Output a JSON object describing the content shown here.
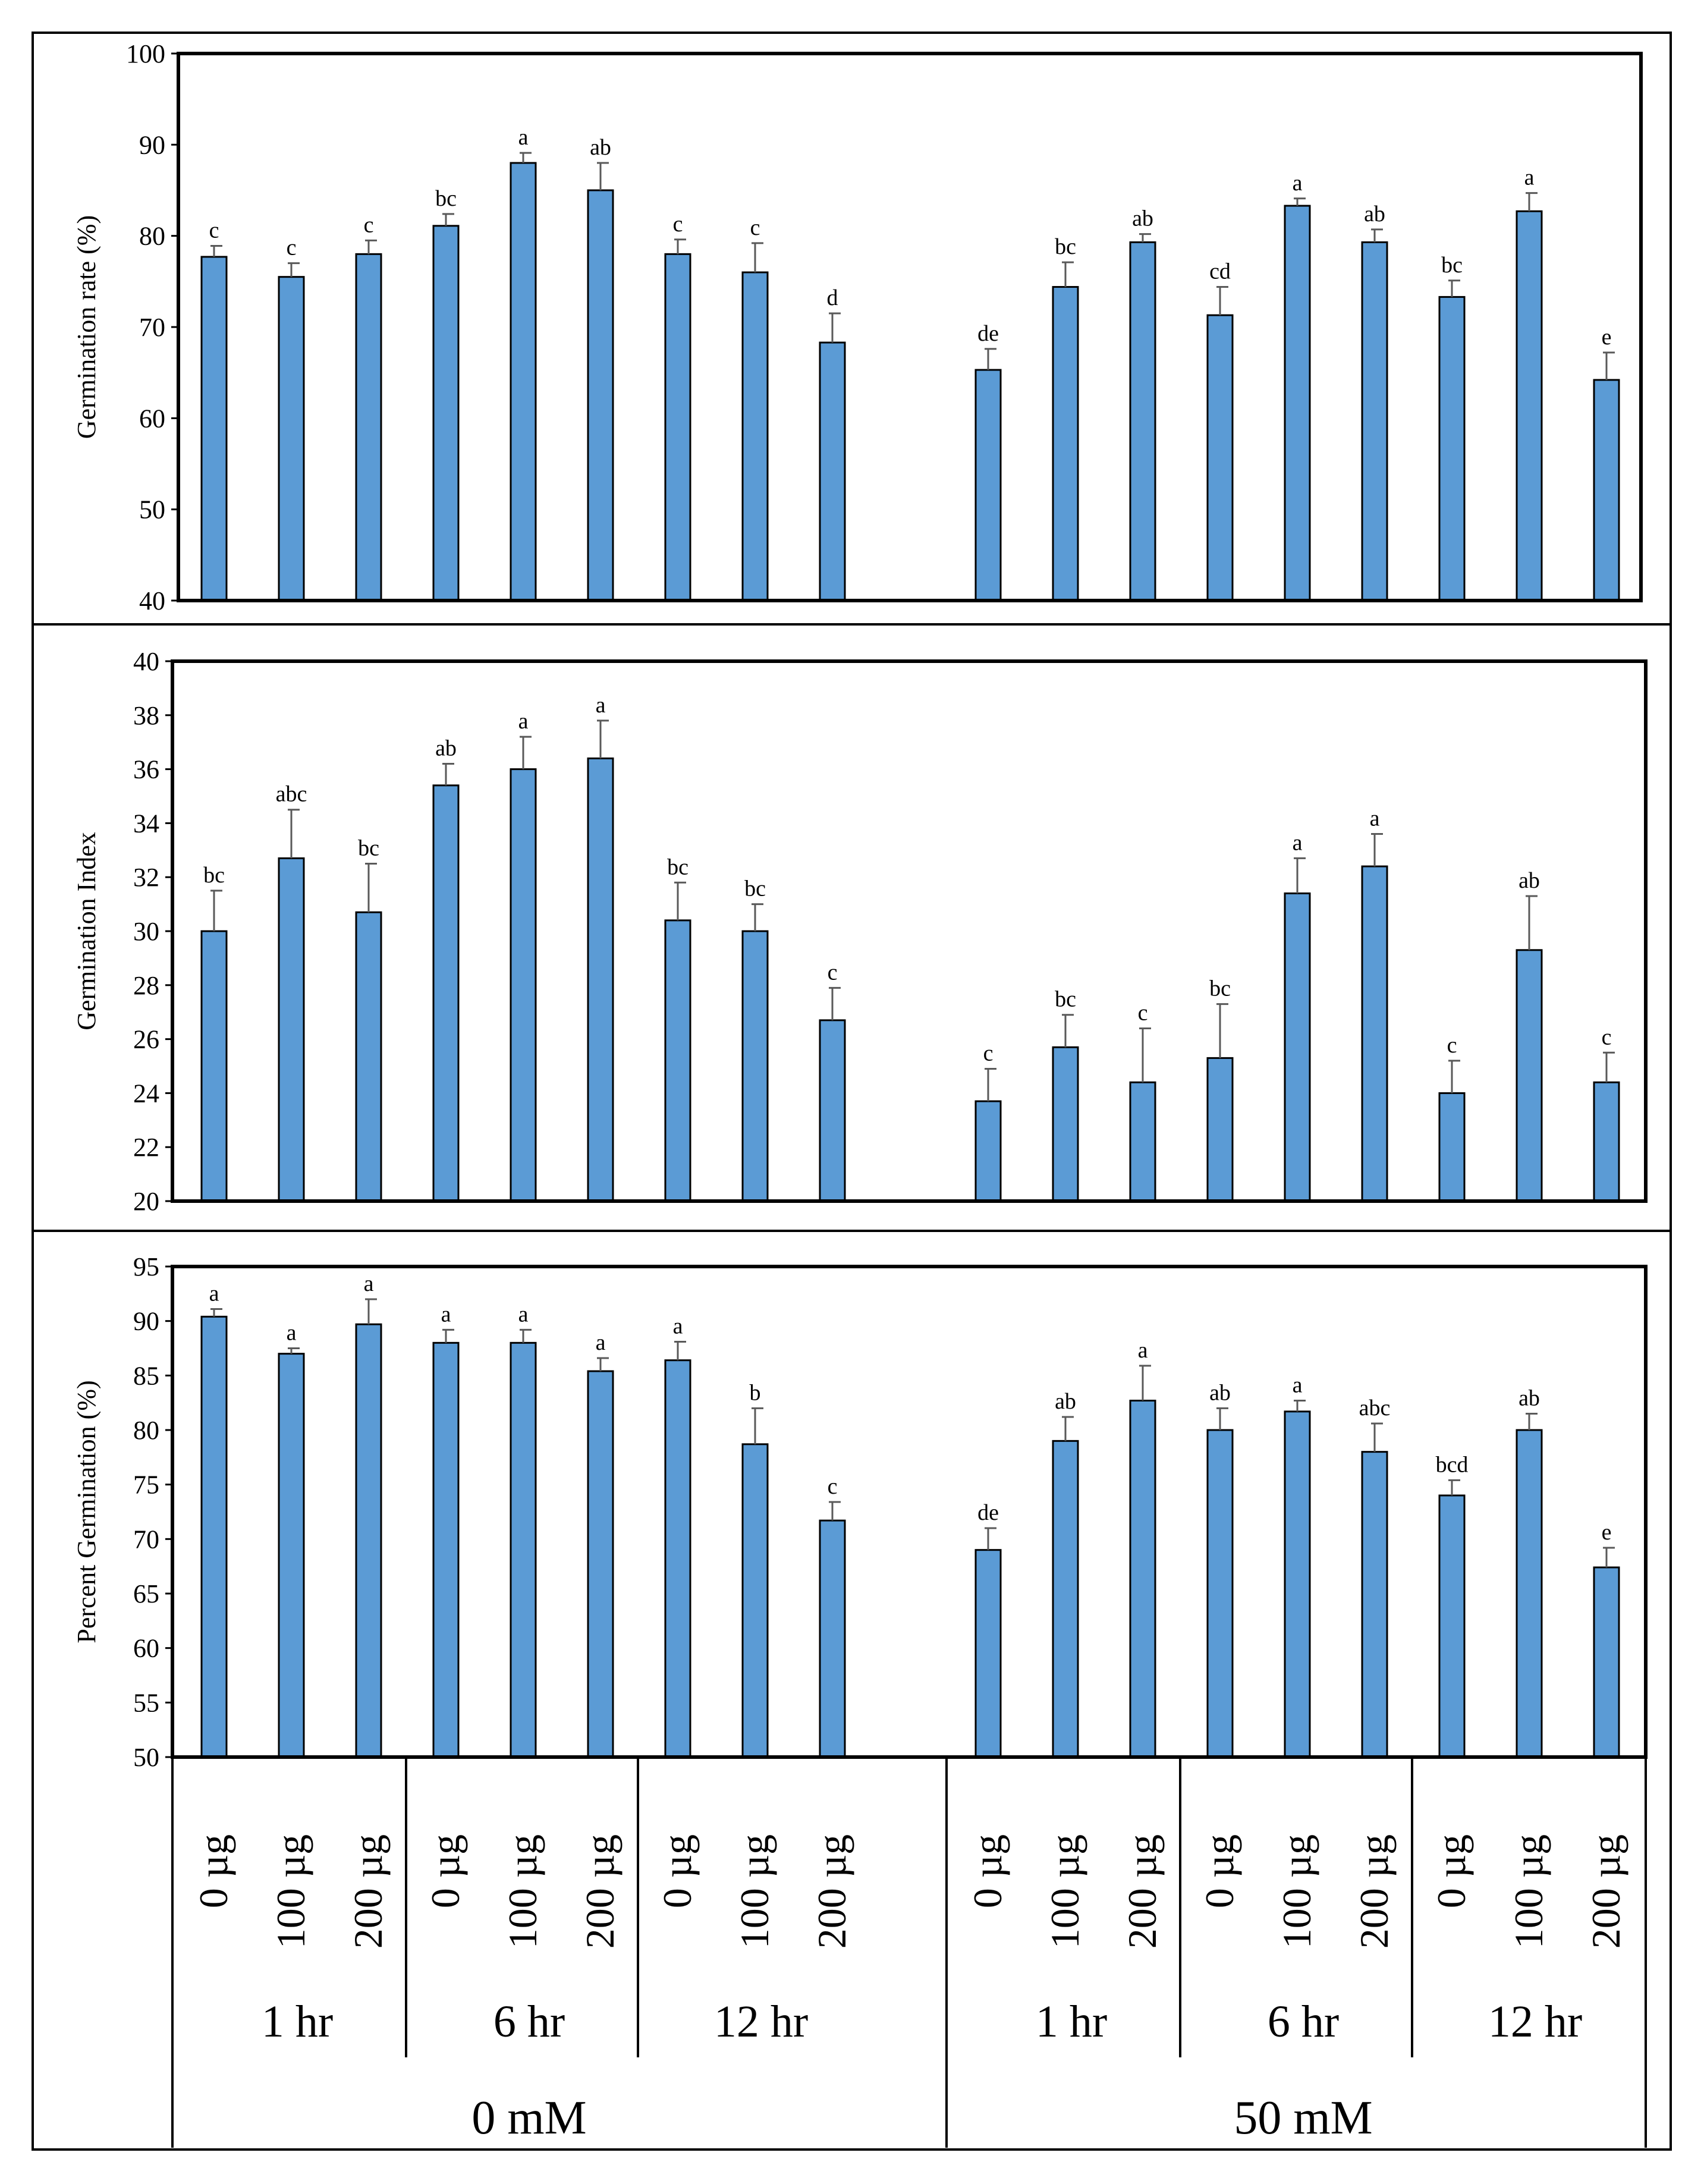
{
  "chart_data": [
    {
      "type": "bar",
      "ylabel": "Germination rate (%)",
      "ylim": [
        40,
        100
      ],
      "yticks": [
        40,
        50,
        60,
        70,
        80,
        90,
        100
      ],
      "values": [
        77.7,
        75.5,
        78.0,
        81.1,
        88.0,
        85.0,
        78.0,
        76.0,
        68.3,
        65.3,
        74.4,
        79.3,
        71.3,
        83.3,
        79.3,
        73.3,
        82.7,
        64.2
      ],
      "errors": [
        1.2,
        1.5,
        1.5,
        1.3,
        1.1,
        3.0,
        1.6,
        3.2,
        3.2,
        2.3,
        2.7,
        0.9,
        3.1,
        0.8,
        1.4,
        1.8,
        2.0,
        3.0
      ],
      "letters": [
        "c",
        "c",
        "c",
        "bc",
        "a",
        "ab",
        "c",
        "c",
        "d",
        "de",
        "bc",
        "ab",
        "cd",
        "a",
        "ab",
        "bc",
        "a",
        "e"
      ]
    },
    {
      "type": "bar",
      "ylabel": "Germination Index",
      "ylim": [
        20,
        40
      ],
      "yticks": [
        20,
        22,
        24,
        26,
        28,
        30,
        32,
        34,
        36,
        38,
        40
      ],
      "values": [
        30.0,
        32.7,
        30.7,
        35.4,
        36.0,
        36.4,
        30.4,
        30.0,
        26.7,
        23.7,
        25.7,
        24.4,
        25.3,
        31.4,
        32.4,
        24.0,
        29.3,
        24.4
      ],
      "errors": [
        1.5,
        1.8,
        1.8,
        0.8,
        1.2,
        1.4,
        1.4,
        1.0,
        1.2,
        1.2,
        1.2,
        2.0,
        2.0,
        1.3,
        1.2,
        1.2,
        2.0,
        1.1
      ],
      "letters": [
        "bc",
        "abc",
        "bc",
        "ab",
        "a",
        "a",
        "bc",
        "bc",
        "c",
        "c",
        "bc",
        "c",
        "bc",
        "a",
        "a",
        "c",
        "ab",
        "c"
      ]
    },
    {
      "type": "bar",
      "ylabel": "Percent Germination (%)",
      "ylim": [
        50,
        95
      ],
      "yticks": [
        50,
        55,
        60,
        65,
        70,
        75,
        80,
        85,
        90,
        95
      ],
      "values": [
        90.4,
        87.0,
        89.7,
        88.0,
        88.0,
        85.4,
        86.4,
        78.7,
        71.7,
        69.0,
        79.0,
        82.7,
        80.0,
        81.7,
        78.0,
        74.0,
        80.0,
        67.4
      ],
      "errors": [
        0.7,
        0.5,
        2.3,
        1.2,
        1.2,
        1.2,
        1.7,
        3.3,
        1.7,
        2.0,
        2.2,
        3.2,
        2.0,
        1.0,
        2.6,
        1.4,
        1.5,
        1.8
      ],
      "letters": [
        "a",
        "a",
        "a",
        "a",
        "a",
        "a",
        "a",
        "b",
        "c",
        "de",
        "ab",
        "a",
        "ab",
        "a",
        "abc",
        "bcd",
        "ab",
        "e"
      ]
    }
  ],
  "x_axis": {
    "doses": [
      "0 µg",
      "100 µg",
      "200 µg",
      "0 µg",
      "100 µg",
      "200 µg",
      "0 µg",
      "100 µg",
      "200 µg",
      "0 µg",
      "100 µg",
      "200 µg",
      "0 µg",
      "100 µg",
      "200 µg",
      "0 µg",
      "100 µg",
      "200 µg"
    ],
    "times": [
      "1 hr",
      "6 hr",
      "12 hr",
      "1 hr",
      "6 hr",
      "12 hr"
    ],
    "salt": [
      "0 mM",
      "50 mM"
    ]
  },
  "colors": {
    "bar": "#5B9BD5",
    "bar_edge": "#000000",
    "error": "#595959"
  }
}
